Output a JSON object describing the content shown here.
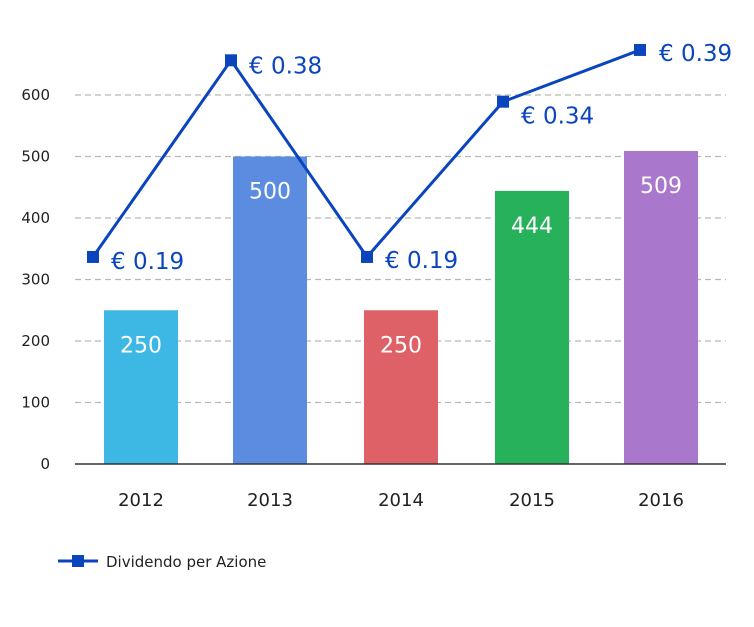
{
  "chart_data": {
    "type": "bar",
    "categories": [
      "2012",
      "2013",
      "2014",
      "2015",
      "2016"
    ],
    "series": [
      {
        "type": "bar",
        "values": [
          250,
          500,
          250,
          444,
          509
        ],
        "colors": [
          "#3DB8E4",
          "#5B8CDF",
          "#DE6167",
          "#27B15A",
          "#A977CB"
        ],
        "labels": [
          "250",
          "500",
          "250",
          "444",
          "509"
        ]
      },
      {
        "name": "Dividendo per Azione",
        "type": "line",
        "values": [
          0.19,
          0.38,
          0.19,
          0.34,
          0.39
        ],
        "labels": [
          "€ 0.19",
          "€ 0.38",
          "€ 0.19",
          "€ 0.34",
          "€ 0.39"
        ],
        "color": "#0A45BE"
      }
    ],
    "yticks": [
      "0",
      "100",
      "200",
      "300",
      "400",
      "500",
      "600"
    ],
    "ylim": [
      0,
      700
    ],
    "grid": true,
    "legend": "bottom-left"
  }
}
